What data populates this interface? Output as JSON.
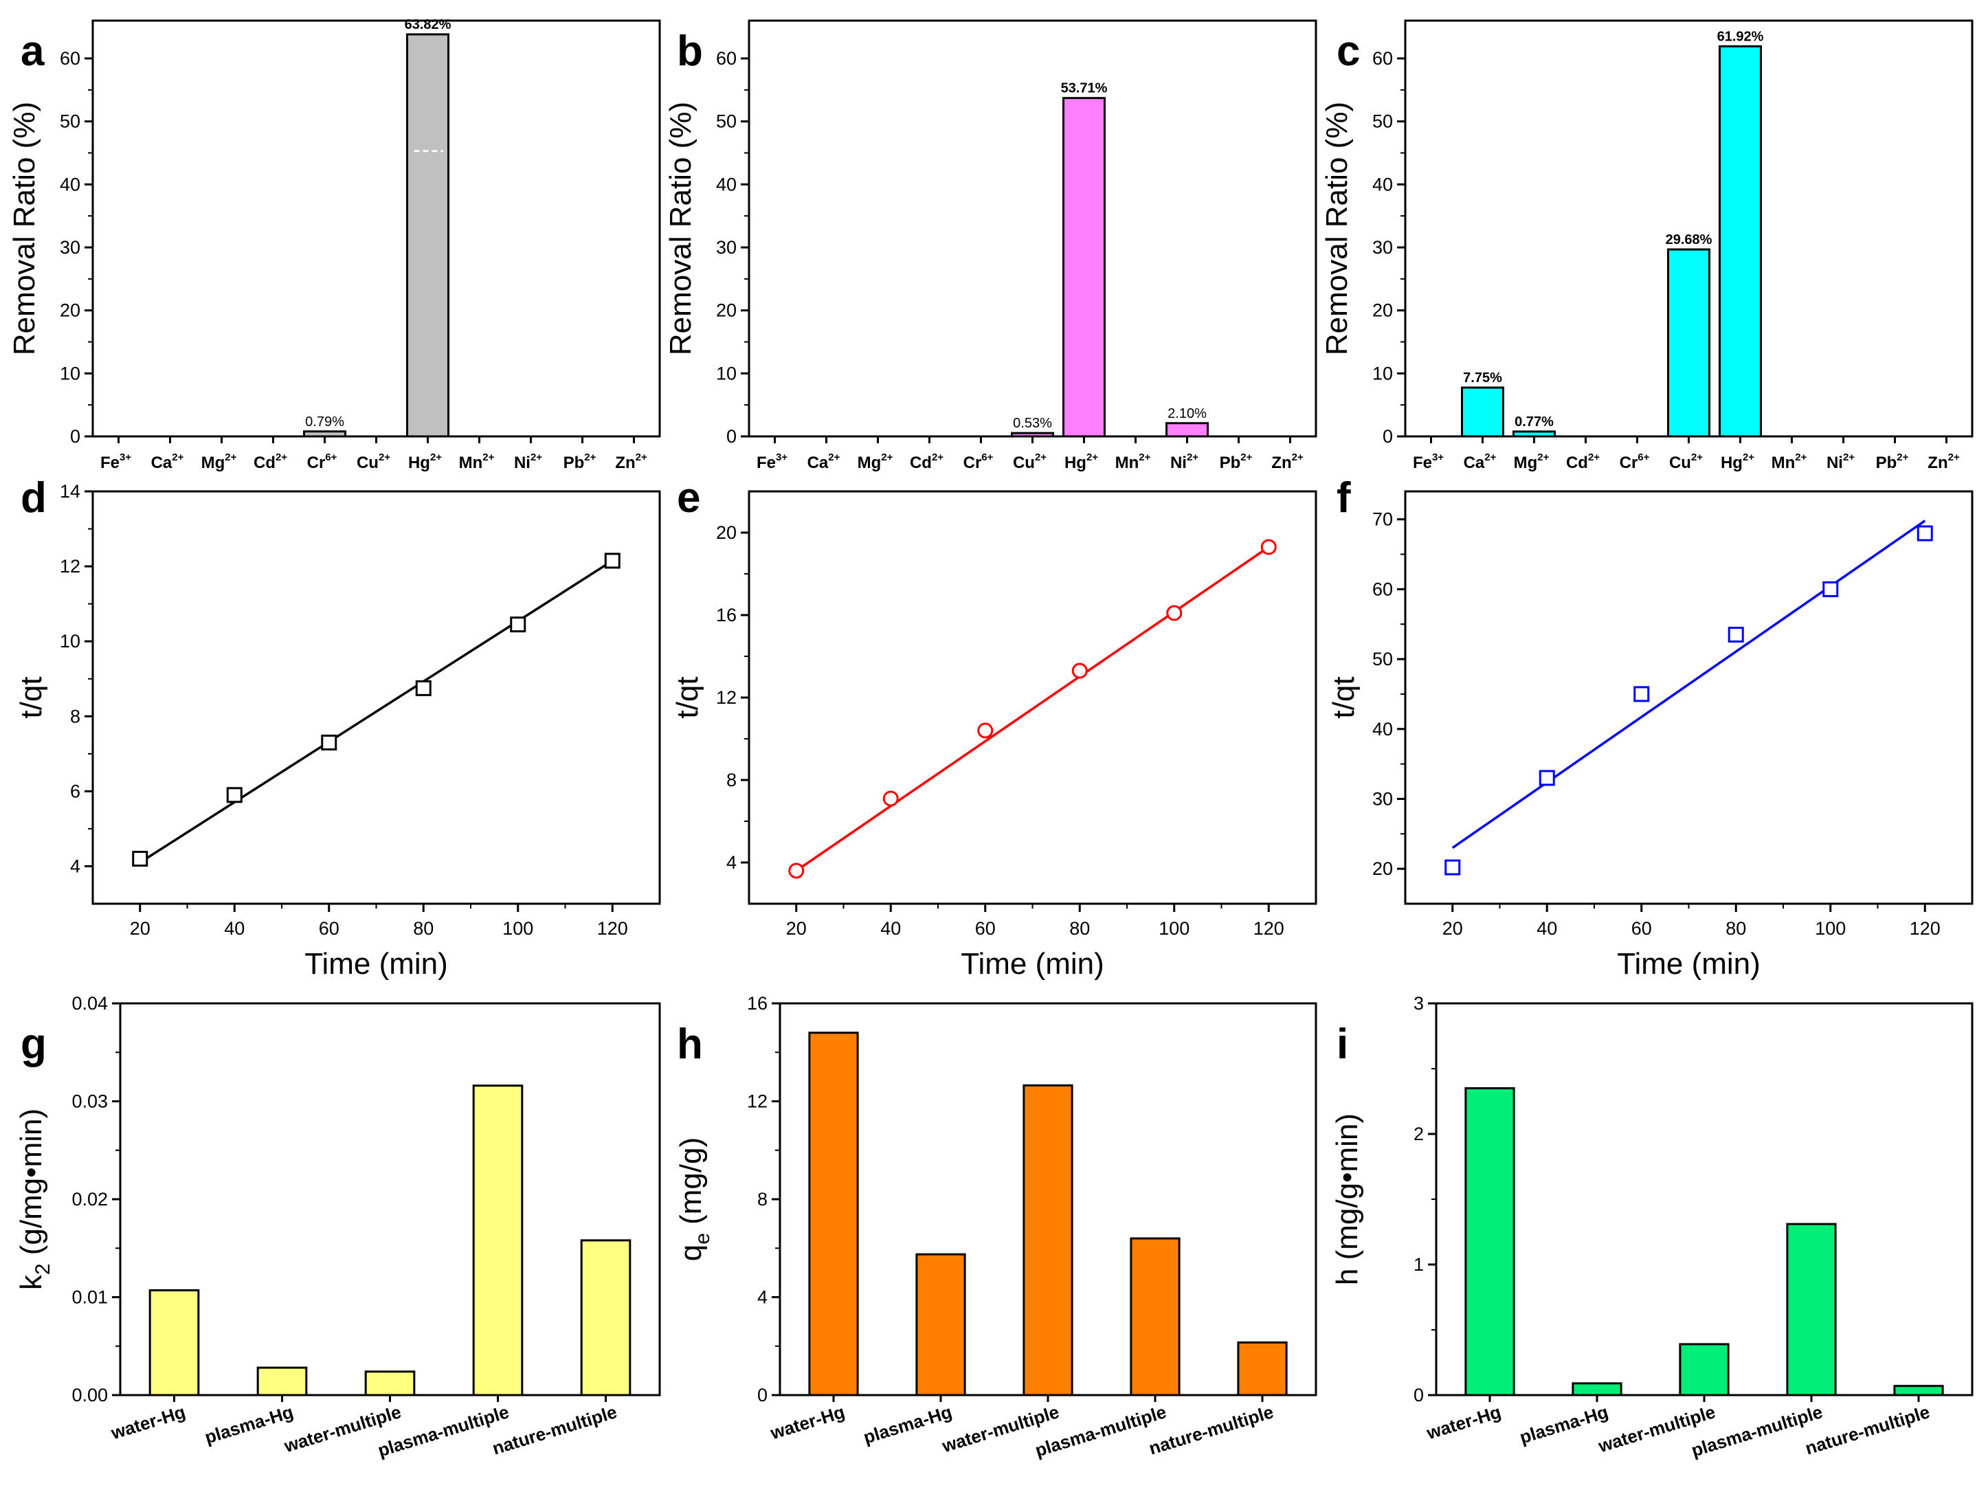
{
  "chart_data": [
    {
      "panel": "a",
      "type": "bar",
      "ylabel": "Removal Ratio (%)",
      "xlabel": "",
      "ylim": [
        0,
        66
      ],
      "yticks": [
        0,
        10,
        20,
        30,
        40,
        50,
        60
      ],
      "categories": [
        {
          "base": "Fe",
          "charge": "3+"
        },
        {
          "base": "Ca",
          "charge": "2+"
        },
        {
          "base": "Mg",
          "charge": "2+"
        },
        {
          "base": "Cd",
          "charge": "2+"
        },
        {
          "base": "Cr",
          "charge": "6+"
        },
        {
          "base": "Cu",
          "charge": "2+"
        },
        {
          "base": "Hg",
          "charge": "2+"
        },
        {
          "base": "Mn",
          "charge": "2+"
        },
        {
          "base": "Ni",
          "charge": "2+"
        },
        {
          "base": "Pb",
          "charge": "2+"
        },
        {
          "base": "Zn",
          "charge": "2+"
        }
      ],
      "values": [
        0,
        0,
        0,
        0,
        0.79,
        0,
        63.82,
        0,
        0,
        0,
        0
      ],
      "labels": [
        "",
        "",
        "",
        "",
        "0.79%",
        "",
        "63.82%",
        "",
        "",
        "",
        ""
      ],
      "labels_bold": [
        false,
        false,
        false,
        false,
        false,
        false,
        true,
        false,
        false,
        false,
        false
      ],
      "color": "#c0c0c0"
    },
    {
      "panel": "b",
      "type": "bar",
      "ylabel": "Removal Ratio (%)",
      "xlabel": "",
      "ylim": [
        0,
        66
      ],
      "yticks": [
        0,
        10,
        20,
        30,
        40,
        50,
        60
      ],
      "categories": [
        {
          "base": "Fe",
          "charge": "3+"
        },
        {
          "base": "Ca",
          "charge": "2+"
        },
        {
          "base": "Mg",
          "charge": "2+"
        },
        {
          "base": "Cd",
          "charge": "2+"
        },
        {
          "base": "Cr",
          "charge": "6+"
        },
        {
          "base": "Cu",
          "charge": "2+"
        },
        {
          "base": "Hg",
          "charge": "2+"
        },
        {
          "base": "Mn",
          "charge": "2+"
        },
        {
          "base": "Ni",
          "charge": "2+"
        },
        {
          "base": "Pb",
          "charge": "2+"
        },
        {
          "base": "Zn",
          "charge": "2+"
        }
      ],
      "values": [
        0,
        0,
        0,
        0,
        0,
        0.53,
        53.71,
        0,
        2.1,
        0,
        0
      ],
      "labels": [
        "",
        "",
        "",
        "",
        "",
        "0.53%",
        "53.71%",
        "",
        "2.10%",
        "",
        ""
      ],
      "labels_bold": [
        false,
        false,
        false,
        false,
        false,
        false,
        true,
        false,
        false,
        false,
        false
      ],
      "color": "#ff80ff"
    },
    {
      "panel": "c",
      "type": "bar",
      "ylabel": "Removal Ratio (%)",
      "xlabel": "",
      "ylim": [
        0,
        66
      ],
      "yticks": [
        0,
        10,
        20,
        30,
        40,
        50,
        60
      ],
      "categories": [
        {
          "base": "Fe",
          "charge": "3+"
        },
        {
          "base": "Ca",
          "charge": "2+"
        },
        {
          "base": "Mg",
          "charge": "2+"
        },
        {
          "base": "Cd",
          "charge": "2+"
        },
        {
          "base": "Cr",
          "charge": "6+"
        },
        {
          "base": "Cu",
          "charge": "2+"
        },
        {
          "base": "Hg",
          "charge": "2+"
        },
        {
          "base": "Mn",
          "charge": "2+"
        },
        {
          "base": "Ni",
          "charge": "2+"
        },
        {
          "base": "Pb",
          "charge": "2+"
        },
        {
          "base": "Zn",
          "charge": "2+"
        }
      ],
      "values": [
        0,
        7.75,
        0.77,
        0,
        0,
        29.68,
        61.92,
        0,
        0,
        0,
        0
      ],
      "labels": [
        "",
        "7.75%",
        "0.77%",
        "",
        "",
        "29.68%",
        "61.92%",
        "",
        "",
        "",
        ""
      ],
      "labels_bold": [
        false,
        true,
        true,
        false,
        false,
        true,
        true,
        false,
        false,
        false,
        false
      ],
      "color": "#00ffff"
    },
    {
      "panel": "d",
      "type": "scatter",
      "ylabel": "t/qt",
      "xlabel": "Time (min)",
      "xlim": [
        10,
        130
      ],
      "xticks": [
        20,
        40,
        60,
        80,
        100,
        120
      ],
      "ylim": [
        3,
        14
      ],
      "yticks": [
        4,
        6,
        8,
        10,
        12,
        14
      ],
      "x": [
        20,
        40,
        60,
        80,
        100,
        120
      ],
      "y": [
        4.2,
        5.9,
        7.3,
        8.75,
        10.45,
        12.15
      ],
      "fit": [
        [
          20,
          4.1
        ],
        [
          120,
          12.15
        ]
      ],
      "marker": "square",
      "color": "#000000"
    },
    {
      "panel": "e",
      "type": "scatter",
      "ylabel": "t/qt",
      "xlabel": "Time (min)",
      "xlim": [
        10,
        130
      ],
      "xticks": [
        20,
        40,
        60,
        80,
        100,
        120
      ],
      "ylim": [
        2,
        22
      ],
      "yticks": [
        4,
        8,
        12,
        16,
        20
      ],
      "x": [
        20,
        40,
        60,
        80,
        100,
        120
      ],
      "y": [
        3.6,
        7.1,
        10.4,
        13.3,
        16.1,
        19.3
      ],
      "fit": [
        [
          20,
          3.6
        ],
        [
          120,
          19.3
        ]
      ],
      "marker": "circle",
      "color": "#ff0000"
    },
    {
      "panel": "f",
      "type": "scatter",
      "ylabel": "t/qt",
      "xlabel": "Time (min)",
      "xlim": [
        10,
        130
      ],
      "xticks": [
        20,
        40,
        60,
        80,
        100,
        120
      ],
      "ylim": [
        15,
        74
      ],
      "yticks": [
        20,
        30,
        40,
        50,
        60,
        70
      ],
      "x": [
        20,
        40,
        60,
        80,
        100,
        120
      ],
      "y": [
        20.2,
        33.0,
        45.0,
        53.5,
        60.0,
        68.0
      ],
      "fit": [
        [
          20,
          23.0
        ],
        [
          120,
          69.8
        ]
      ],
      "marker": "square",
      "color": "#0000ff"
    },
    {
      "panel": "g",
      "type": "bar",
      "ylabel_base": "k",
      "ylabel_sub": "2",
      "ylabel_rest": " (g/mg•min)",
      "xlabel": "",
      "ylim": [
        0,
        0.04
      ],
      "yticks": [
        "0.00",
        "0.01",
        "0.02",
        "0.03",
        "0.04"
      ],
      "categories": [
        "water-Hg",
        "plasma-Hg",
        "water-multiple",
        "plasma-multiple",
        "nature-multiple"
      ],
      "values": [
        0.0107,
        0.0028,
        0.0024,
        0.0316,
        0.0158
      ],
      "color": "#ffff80"
    },
    {
      "panel": "h",
      "type": "bar",
      "ylabel_base": "q",
      "ylabel_sub": "e",
      "ylabel_rest": " (mg/g)",
      "xlabel": "",
      "ylim": [
        0,
        16
      ],
      "yticks": [
        "0",
        "4",
        "8",
        "12",
        "16"
      ],
      "categories": [
        "water-Hg",
        "plasma-Hg",
        "water-multiple",
        "plasma-multiple",
        "nature-multiple"
      ],
      "values": [
        14.8,
        5.75,
        12.65,
        6.4,
        2.15
      ],
      "color": "#ff8000"
    },
    {
      "panel": "i",
      "type": "bar",
      "ylabel_base": "h (mg/g•min)",
      "ylabel_sub": "",
      "ylabel_rest": "",
      "xlabel": "",
      "ylim": [
        0,
        3
      ],
      "yticks": [
        "0",
        "1",
        "2",
        "3"
      ],
      "categories": [
        "water-Hg",
        "plasma-Hg",
        "water-multiple",
        "plasma-multiple",
        "nature-multiple"
      ],
      "values": [
        2.35,
        0.09,
        0.39,
        1.31,
        0.07
      ],
      "color": "#00ee77"
    }
  ]
}
